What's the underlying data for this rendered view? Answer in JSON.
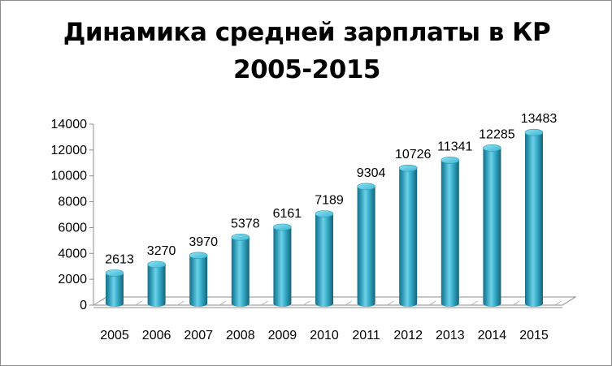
{
  "chart_data": {
    "type": "bar",
    "title_line1": "Динамика средней зарплаты в КР",
    "title_line2": "2005-2015",
    "categories": [
      "2005",
      "2006",
      "2007",
      "2008",
      "2009",
      "2010",
      "2011",
      "2012",
      "2013",
      "2014",
      "2015"
    ],
    "values": [
      2613,
      3270,
      3970,
      5378,
      6161,
      7189,
      9304,
      10726,
      11341,
      12285,
      13483
    ],
    "yticks": [
      0,
      2000,
      4000,
      6000,
      8000,
      10000,
      12000,
      14000
    ],
    "ylim": [
      0,
      14000
    ],
    "xlabel": "",
    "ylabel": "",
    "grid": false,
    "legend": "none",
    "style": "3d-cylinder",
    "bar_color": "#31a8c4",
    "data_labels": true
  }
}
